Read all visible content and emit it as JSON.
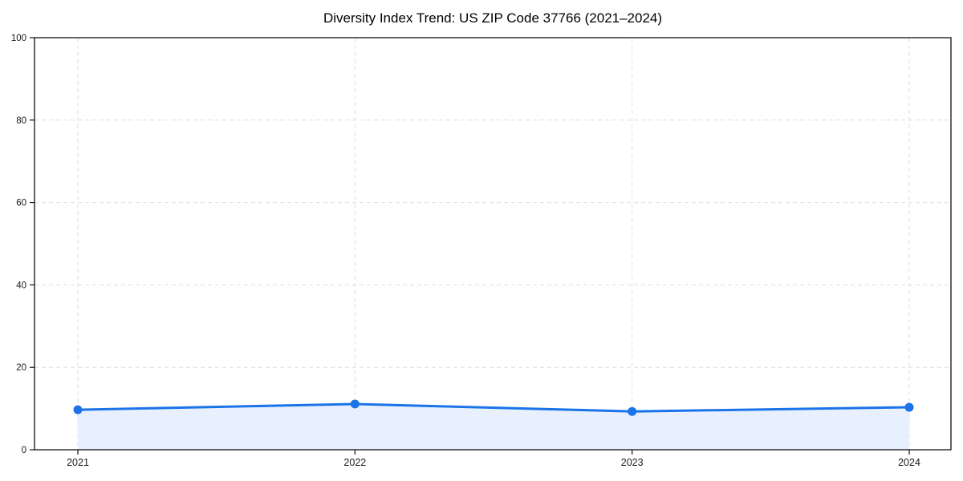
{
  "chart_data": {
    "type": "line",
    "title": "Diversity Index Trend: US ZIP Code 37766 (2021–2024)",
    "x": [
      "2021",
      "2022",
      "2023",
      "2024"
    ],
    "series": [
      {
        "name": "Diversity Index",
        "values": [
          9.7,
          11.1,
          9.3,
          10.3
        ]
      }
    ],
    "xlabel": "",
    "ylabel": "",
    "ylim": [
      0,
      100
    ],
    "yticks": [
      0,
      20,
      40,
      60,
      80,
      100
    ],
    "grid": true,
    "grid_style": "dashed",
    "legend": false,
    "area_fill": true,
    "marker": "circle",
    "colors": {
      "line": "#1a73e8",
      "marker": "#1a73e8",
      "area": "#e8f0fd",
      "grid": "#dedede",
      "axis": "#111111",
      "tick_text": "#1a1a1a",
      "title_text": "#000000",
      "background": "#ffffff"
    }
  }
}
